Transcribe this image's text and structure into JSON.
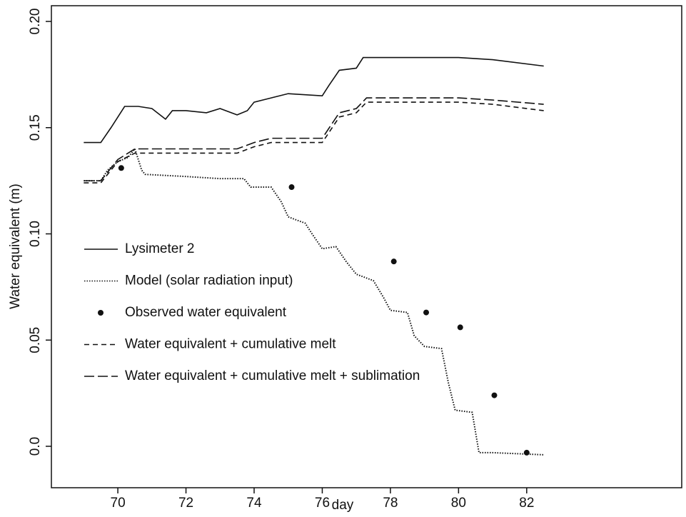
{
  "chart_data": {
    "type": "line",
    "xlabel": "day",
    "ylabel": "Water equivalent (m)",
    "xlim": [
      68.05,
      86.55
    ],
    "ylim": [
      -0.0195,
      0.2074
    ],
    "xticks": [
      70,
      72,
      74,
      76,
      78,
      80,
      82
    ],
    "yticks": [
      {
        "value": 0,
        "label": "0.0"
      },
      0.05,
      {
        "value": 0.1,
        "label": "0.10"
      },
      0.15,
      {
        "value": 0.2,
        "label": "0.20"
      }
    ],
    "legend": "left",
    "series": [
      {
        "name": "Lysimeter 2",
        "color": "#111111",
        "style": "solid",
        "x": [
          69.0,
          69.5,
          69.8,
          70.2,
          70.6,
          71.0,
          71.4,
          71.6,
          72.0,
          72.6,
          73.0,
          73.5,
          73.8,
          74.0,
          74.5,
          75.0,
          76.0,
          76.2,
          76.5,
          77.0,
          77.2,
          78.0,
          80.0,
          81.0,
          82.5
        ],
        "values": [
          0.143,
          0.143,
          0.15,
          0.16,
          0.16,
          0.159,
          0.154,
          0.158,
          0.158,
          0.157,
          0.159,
          0.156,
          0.158,
          0.162,
          0.164,
          0.166,
          0.165,
          0.17,
          0.177,
          0.178,
          0.183,
          0.183,
          0.183,
          0.182,
          0.179
        ]
      },
      {
        "name": "Model (solar radiation input)",
        "color": "#111111",
        "style": "dotted",
        "x": [
          69.0,
          69.5,
          69.7,
          70.0,
          70.3,
          70.5,
          70.7,
          70.8,
          72.0,
          73.0,
          73.7,
          73.9,
          74.5,
          74.8,
          75.0,
          75.5,
          75.7,
          76.0,
          76.4,
          76.7,
          77.0,
          77.5,
          77.8,
          78.0,
          78.5,
          78.7,
          79.0,
          79.5,
          79.7,
          79.9,
          80.4,
          80.6,
          81.0,
          82.5
        ],
        "values": [
          0.125,
          0.125,
          0.13,
          0.134,
          0.136,
          0.14,
          0.13,
          0.128,
          0.127,
          0.126,
          0.126,
          0.122,
          0.122,
          0.115,
          0.108,
          0.105,
          0.1,
          0.093,
          0.094,
          0.087,
          0.081,
          0.078,
          0.07,
          0.064,
          0.063,
          0.052,
          0.047,
          0.046,
          0.03,
          0.017,
          0.016,
          -0.003,
          -0.003,
          -0.004
        ]
      },
      {
        "name": "Observed water equivalent",
        "color": "#111111",
        "style": "points",
        "x": [
          70.1,
          75.1,
          78.1,
          79.05,
          80.05,
          81.05,
          82.0
        ],
        "values": [
          0.131,
          0.122,
          0.087,
          0.063,
          0.056,
          0.024,
          -0.003
        ]
      },
      {
        "name": "Water equivalent + cumulative melt",
        "color": "#111111",
        "style": "dashed",
        "x": [
          69.0,
          69.5,
          70.0,
          70.5,
          71.0,
          73.5,
          74.0,
          74.5,
          76.0,
          76.5,
          77.0,
          77.3,
          80.0,
          81.0,
          82.5
        ],
        "values": [
          0.124,
          0.124,
          0.134,
          0.138,
          0.138,
          0.138,
          0.141,
          0.143,
          0.143,
          0.155,
          0.157,
          0.162,
          0.162,
          0.161,
          0.158
        ]
      },
      {
        "name": "Water equivalent + cumulative melt + sublimation",
        "color": "#111111",
        "style": "longdash",
        "x": [
          69.0,
          69.5,
          70.0,
          70.5,
          71.0,
          73.5,
          74.0,
          74.5,
          76.0,
          76.5,
          77.0,
          77.3,
          80.0,
          81.0,
          82.5
        ],
        "values": [
          0.125,
          0.125,
          0.135,
          0.14,
          0.14,
          0.14,
          0.143,
          0.145,
          0.145,
          0.157,
          0.159,
          0.164,
          0.164,
          0.163,
          0.161
        ]
      }
    ]
  }
}
